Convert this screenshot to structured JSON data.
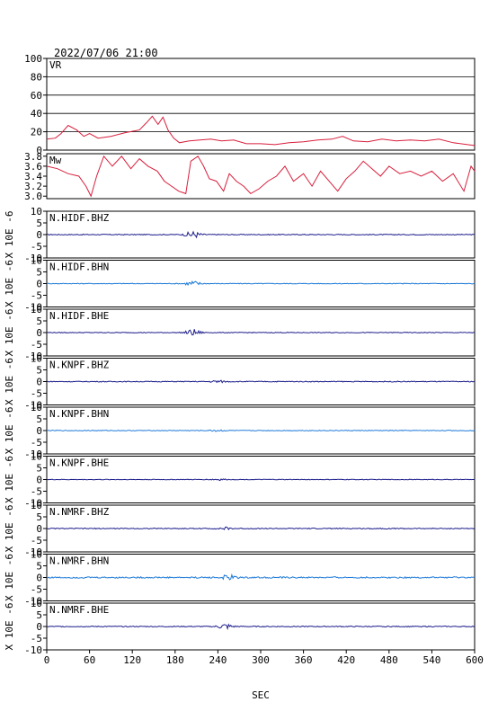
{
  "chart_data": {
    "type": "line",
    "title": "2022/07/06 21:00",
    "xlabel": "SEC",
    "xlim": [
      0,
      600
    ],
    "x_ticks": [
      "0",
      "60",
      "120",
      "180",
      "240",
      "300",
      "360",
      "420",
      "480",
      "540",
      "600"
    ],
    "colors": {
      "vr": "#d81e3c",
      "mw": "#d81e3c",
      "trace_dark": "#1c1c8c",
      "trace_light": "#1e7ad8",
      "grid": "#000000"
    },
    "vr_panel": {
      "label": "VR",
      "ylim": [
        0,
        100
      ],
      "y_ticks": [
        "100",
        "80",
        "60",
        "40",
        "20",
        "0"
      ],
      "series": [
        {
          "x": 0,
          "y": 12
        },
        {
          "x": 12,
          "y": 13
        },
        {
          "x": 20,
          "y": 18
        },
        {
          "x": 30,
          "y": 27
        },
        {
          "x": 42,
          "y": 22
        },
        {
          "x": 52,
          "y": 15
        },
        {
          "x": 60,
          "y": 18
        },
        {
          "x": 72,
          "y": 13
        },
        {
          "x": 90,
          "y": 15
        },
        {
          "x": 110,
          "y": 19
        },
        {
          "x": 130,
          "y": 22
        },
        {
          "x": 140,
          "y": 30
        },
        {
          "x": 148,
          "y": 37
        },
        {
          "x": 156,
          "y": 28
        },
        {
          "x": 163,
          "y": 36
        },
        {
          "x": 170,
          "y": 22
        },
        {
          "x": 178,
          "y": 13
        },
        {
          "x": 186,
          "y": 8
        },
        {
          "x": 200,
          "y": 10
        },
        {
          "x": 215,
          "y": 11
        },
        {
          "x": 230,
          "y": 12
        },
        {
          "x": 245,
          "y": 10
        },
        {
          "x": 262,
          "y": 11
        },
        {
          "x": 280,
          "y": 7
        },
        {
          "x": 300,
          "y": 7
        },
        {
          "x": 320,
          "y": 6
        },
        {
          "x": 340,
          "y": 8
        },
        {
          "x": 360,
          "y": 9
        },
        {
          "x": 380,
          "y": 11
        },
        {
          "x": 400,
          "y": 12
        },
        {
          "x": 415,
          "y": 15
        },
        {
          "x": 430,
          "y": 10
        },
        {
          "x": 450,
          "y": 9
        },
        {
          "x": 470,
          "y": 12
        },
        {
          "x": 490,
          "y": 10
        },
        {
          "x": 510,
          "y": 11
        },
        {
          "x": 530,
          "y": 10
        },
        {
          "x": 550,
          "y": 12
        },
        {
          "x": 570,
          "y": 8
        },
        {
          "x": 590,
          "y": 6
        },
        {
          "x": 600,
          "y": 5
        }
      ]
    },
    "mw_panel": {
      "label": "Mw",
      "ylim": [
        2.95,
        3.85
      ],
      "y_ticks": [
        "3.8",
        "3.6",
        "3.4",
        "3.2",
        "3.0"
      ],
      "series": [
        {
          "x": 0,
          "y": 3.6
        },
        {
          "x": 15,
          "y": 3.55
        },
        {
          "x": 30,
          "y": 3.45
        },
        {
          "x": 45,
          "y": 3.4
        },
        {
          "x": 55,
          "y": 3.2
        },
        {
          "x": 62,
          "y": 3.0
        },
        {
          "x": 70,
          "y": 3.4
        },
        {
          "x": 80,
          "y": 3.8
        },
        {
          "x": 92,
          "y": 3.6
        },
        {
          "x": 105,
          "y": 3.8
        },
        {
          "x": 118,
          "y": 3.55
        },
        {
          "x": 130,
          "y": 3.75
        },
        {
          "x": 142,
          "y": 3.6
        },
        {
          "x": 155,
          "y": 3.5
        },
        {
          "x": 165,
          "y": 3.3
        },
        {
          "x": 175,
          "y": 3.2
        },
        {
          "x": 185,
          "y": 3.1
        },
        {
          "x": 195,
          "y": 3.05
        },
        {
          "x": 202,
          "y": 3.7
        },
        {
          "x": 212,
          "y": 3.8
        },
        {
          "x": 220,
          "y": 3.6
        },
        {
          "x": 228,
          "y": 3.35
        },
        {
          "x": 238,
          "y": 3.3
        },
        {
          "x": 248,
          "y": 3.1
        },
        {
          "x": 256,
          "y": 3.45
        },
        {
          "x": 266,
          "y": 3.3
        },
        {
          "x": 276,
          "y": 3.2
        },
        {
          "x": 286,
          "y": 3.05
        },
        {
          "x": 298,
          "y": 3.15
        },
        {
          "x": 310,
          "y": 3.3
        },
        {
          "x": 322,
          "y": 3.4
        },
        {
          "x": 334,
          "y": 3.6
        },
        {
          "x": 346,
          "y": 3.3
        },
        {
          "x": 360,
          "y": 3.45
        },
        {
          "x": 372,
          "y": 3.2
        },
        {
          "x": 384,
          "y": 3.5
        },
        {
          "x": 396,
          "y": 3.3
        },
        {
          "x": 408,
          "y": 3.1
        },
        {
          "x": 420,
          "y": 3.35
        },
        {
          "x": 432,
          "y": 3.5
        },
        {
          "x": 444,
          "y": 3.7
        },
        {
          "x": 456,
          "y": 3.55
        },
        {
          "x": 468,
          "y": 3.4
        },
        {
          "x": 480,
          "y": 3.6
        },
        {
          "x": 495,
          "y": 3.45
        },
        {
          "x": 510,
          "y": 3.5
        },
        {
          "x": 525,
          "y": 3.4
        },
        {
          "x": 540,
          "y": 3.5
        },
        {
          "x": 555,
          "y": 3.3
        },
        {
          "x": 570,
          "y": 3.45
        },
        {
          "x": 585,
          "y": 3.1
        },
        {
          "x": 595,
          "y": 3.6
        },
        {
          "x": 600,
          "y": 3.5
        }
      ]
    },
    "waveform_panels": {
      "y_axis_label": "X 10E -6",
      "ylim": [
        -10,
        10
      ],
      "y_ticks": [
        "10",
        "5",
        "0",
        "-5",
        "-10"
      ],
      "stations": [
        {
          "label": "N.HIDF.BHZ",
          "color": "#1c1c8c",
          "burst_center": 205,
          "burst_amp": 1.5,
          "noise": 0.18
        },
        {
          "label": "N.HIDF.BHN",
          "color": "#1e7ad8",
          "burst_center": 205,
          "burst_amp": 1.2,
          "noise": 0.15
        },
        {
          "label": "N.HIDF.BHE",
          "color": "#1c1c8c",
          "burst_center": 205,
          "burst_amp": 1.4,
          "noise": 0.15
        },
        {
          "label": "N.KNPF.BHZ",
          "color": "#1c1c8c",
          "burst_center": 240,
          "burst_amp": 0.5,
          "noise": 0.18
        },
        {
          "label": "N.KNPF.BHN",
          "color": "#1e7ad8",
          "burst_center": 240,
          "burst_amp": 0.4,
          "noise": 0.15
        },
        {
          "label": "N.KNPF.BHE",
          "color": "#1c1c8c",
          "burst_center": 240,
          "burst_amp": 0.4,
          "noise": 0.12
        },
        {
          "label": "N.NMRF.BHZ",
          "color": "#1c1c8c",
          "burst_center": 250,
          "burst_amp": 0.5,
          "noise": 0.2
        },
        {
          "label": "N.NMRF.BHN",
          "color": "#1e7ad8",
          "burst_center": 255,
          "burst_amp": 1.0,
          "noise": 0.3
        },
        {
          "label": "N.NMRF.BHE",
          "color": "#1c1c8c",
          "burst_center": 250,
          "burst_amp": 1.2,
          "noise": 0.2
        }
      ]
    }
  }
}
